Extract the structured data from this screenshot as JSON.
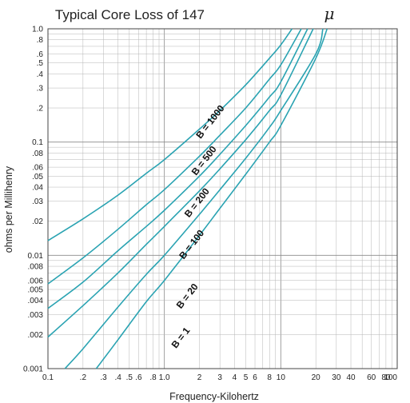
{
  "chart_data": {
    "type": "line",
    "title": "Typical Core Loss of 147",
    "title_symbol": "μ",
    "xlabel": "Frequency-Kilohertz",
    "ylabel": "ohms per Millihenry",
    "x_scale": "log",
    "y_scale": "log",
    "xlim": [
      0.1,
      100
    ],
    "ylim": [
      0.001,
      1.0
    ],
    "grid": true,
    "line_color": "#2aa3b2",
    "x_ticks": [
      {
        "value": 0.1,
        "label": "0.1"
      },
      {
        "value": 0.2,
        "label": ".2"
      },
      {
        "value": 0.3,
        "label": ".3"
      },
      {
        "value": 0.4,
        "label": ".4"
      },
      {
        "value": 0.5,
        "label": ".5"
      },
      {
        "value": 0.6,
        "label": ".6"
      },
      {
        "value": 0.8,
        "label": ".8"
      },
      {
        "value": 1,
        "label": "1.0"
      },
      {
        "value": 2,
        "label": "2"
      },
      {
        "value": 3,
        "label": "3"
      },
      {
        "value": 4,
        "label": "4"
      },
      {
        "value": 5,
        "label": "5"
      },
      {
        "value": 6,
        "label": "6"
      },
      {
        "value": 8,
        "label": "8"
      },
      {
        "value": 10,
        "label": "10"
      },
      {
        "value": 20,
        "label": "20"
      },
      {
        "value": 30,
        "label": "30"
      },
      {
        "value": 40,
        "label": "40"
      },
      {
        "value": 60,
        "label": "60"
      },
      {
        "value": 80,
        "label": "80"
      },
      {
        "value": 100,
        "label": "100"
      }
    ],
    "y_ticks": [
      {
        "value": 1.0,
        "label": "1.0"
      },
      {
        "value": 0.8,
        "label": ".8"
      },
      {
        "value": 0.6,
        "label": ".6"
      },
      {
        "value": 0.5,
        "label": ".5"
      },
      {
        "value": 0.4,
        "label": ".4"
      },
      {
        "value": 0.3,
        "label": ".3"
      },
      {
        "value": 0.2,
        "label": ".2"
      },
      {
        "value": 0.1,
        "label": "0.1"
      },
      {
        "value": 0.08,
        "label": ".08"
      },
      {
        "value": 0.06,
        "label": ".06"
      },
      {
        "value": 0.05,
        "label": ".05"
      },
      {
        "value": 0.04,
        "label": ".04"
      },
      {
        "value": 0.03,
        "label": ".03"
      },
      {
        "value": 0.02,
        "label": ".02"
      },
      {
        "value": 0.01,
        "label": "0.01"
      },
      {
        "value": 0.008,
        "label": ".008"
      },
      {
        "value": 0.006,
        "label": ".006"
      },
      {
        "value": 0.005,
        "label": ".005"
      },
      {
        "value": 0.004,
        "label": ".004"
      },
      {
        "value": 0.003,
        "label": ".003"
      },
      {
        "value": 0.002,
        "label": ".002"
      },
      {
        "value": 0.001,
        "label": "0.001"
      }
    ],
    "series": [
      {
        "name": "B = 1000",
        "points": [
          [
            0.1,
            0.0135
          ],
          [
            0.2,
            0.021
          ],
          [
            0.4,
            0.034
          ],
          [
            0.7,
            0.053
          ],
          [
            1,
            0.07
          ],
          [
            2,
            0.13
          ],
          [
            3,
            0.19
          ],
          [
            5,
            0.32
          ],
          [
            8,
            0.55
          ],
          [
            10,
            0.72
          ],
          [
            12.5,
            1.0
          ]
        ]
      },
      {
        "name": "B = 500",
        "points": [
          [
            0.1,
            0.0056
          ],
          [
            0.2,
            0.0095
          ],
          [
            0.4,
            0.017
          ],
          [
            0.7,
            0.028
          ],
          [
            1,
            0.038
          ],
          [
            2,
            0.075
          ],
          [
            3,
            0.115
          ],
          [
            5,
            0.2
          ],
          [
            8,
            0.36
          ],
          [
            10,
            0.48
          ],
          [
            15,
            1.0
          ]
        ]
      },
      {
        "name": "B = 200",
        "points": [
          [
            0.1,
            0.0034
          ],
          [
            0.2,
            0.0058
          ],
          [
            0.4,
            0.011
          ],
          [
            0.7,
            0.018
          ],
          [
            1,
            0.025
          ],
          [
            2,
            0.05
          ],
          [
            3,
            0.078
          ],
          [
            5,
            0.14
          ],
          [
            8,
            0.25
          ],
          [
            10,
            0.34
          ],
          [
            17,
            1.0
          ]
        ]
      },
      {
        "name": "B = 100",
        "points": [
          [
            0.1,
            0.0019
          ],
          [
            0.2,
            0.0036
          ],
          [
            0.4,
            0.007
          ],
          [
            0.7,
            0.0125
          ],
          [
            1,
            0.018
          ],
          [
            2,
            0.037
          ],
          [
            3,
            0.058
          ],
          [
            5,
            0.105
          ],
          [
            8,
            0.19
          ],
          [
            10,
            0.26
          ],
          [
            19,
            1.0
          ]
        ]
      },
      {
        "name": "B = 20",
        "points": [
          [
            0.14,
            0.001
          ],
          [
            0.2,
            0.0015
          ],
          [
            0.4,
            0.0035
          ],
          [
            0.7,
            0.0068
          ],
          [
            1,
            0.01
          ],
          [
            2,
            0.023
          ],
          [
            3,
            0.038
          ],
          [
            5,
            0.072
          ],
          [
            8,
            0.135
          ],
          [
            10,
            0.19
          ],
          [
            20,
            0.6
          ],
          [
            23,
            1.0
          ]
        ]
      },
      {
        "name": "B = 1",
        "points": [
          [
            0.26,
            0.001
          ],
          [
            0.4,
            0.0018
          ],
          [
            0.7,
            0.0039
          ],
          [
            1,
            0.006
          ],
          [
            2,
            0.015
          ],
          [
            3,
            0.026
          ],
          [
            5,
            0.052
          ],
          [
            8,
            0.1
          ],
          [
            10,
            0.14
          ],
          [
            20,
            0.55
          ],
          [
            25,
            1.0
          ]
        ]
      }
    ],
    "curve_labels": [
      {
        "text": "B = 1000",
        "x": 2.6,
        "y": 0.145
      },
      {
        "text": "B = 500",
        "x": 2.3,
        "y": 0.066
      },
      {
        "text": "B = 200",
        "x": 2.0,
        "y": 0.028
      },
      {
        "text": "B = 100",
        "x": 1.8,
        "y": 0.012
      },
      {
        "text": "B = 20",
        "x": 1.65,
        "y": 0.0042
      },
      {
        "text": "B = 1",
        "x": 1.45,
        "y": 0.0018
      }
    ]
  }
}
